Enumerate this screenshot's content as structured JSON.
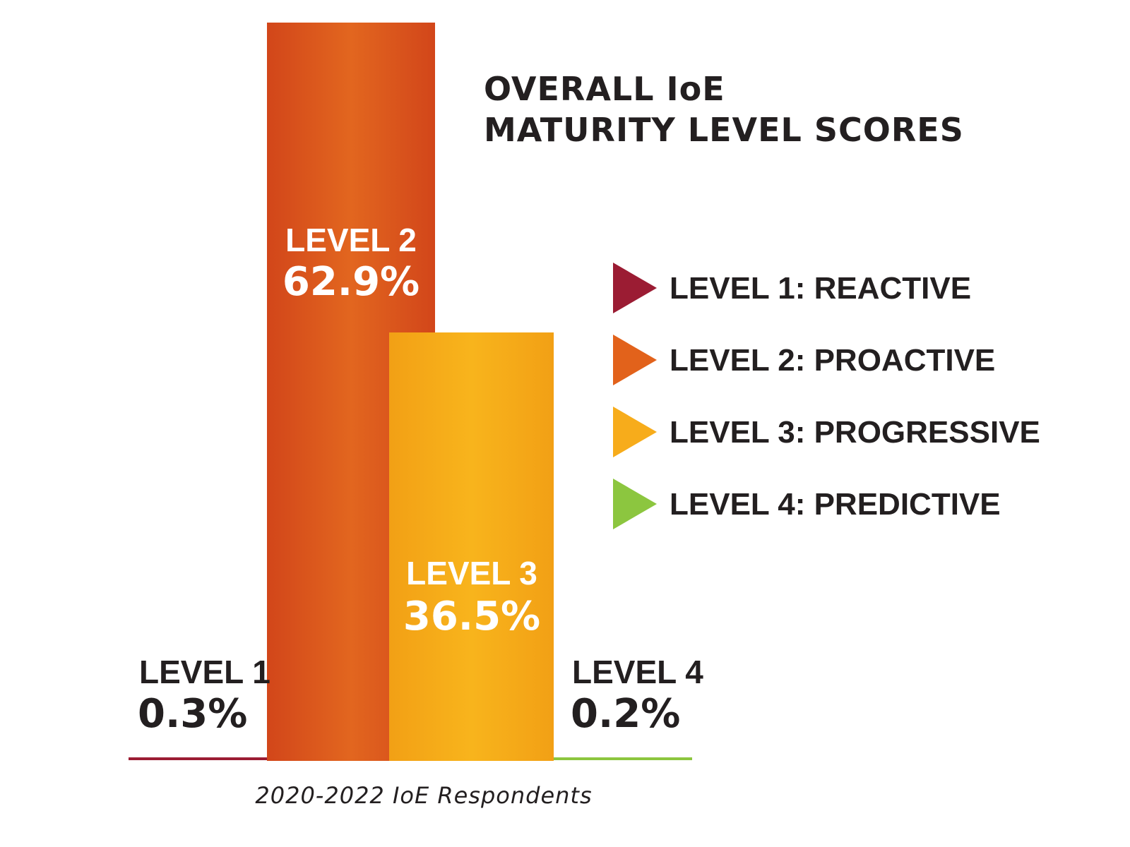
{
  "chart_data": {
    "type": "bar",
    "title_lines": [
      "OVERALL IoE",
      "MATURITY LEVEL SCORES"
    ],
    "caption": "2020-2022 IoE Respondents",
    "unit": "%",
    "ylim": [
      0,
      65
    ],
    "grid": false,
    "legend_position": "right",
    "categories": [
      "LEVEL 1",
      "LEVEL 2",
      "LEVEL 3",
      "LEVEL 4"
    ],
    "values": [
      0.3,
      62.9,
      36.5,
      0.2
    ],
    "value_labels": [
      "0.3%",
      "62.9%",
      "36.5%",
      "0.2%"
    ],
    "colors": [
      "#9b1c33",
      "#e2621b",
      "#f7ac1b",
      "#8cc63f"
    ],
    "legend": [
      "LEVEL 1: REACTIVE",
      "LEVEL 2: PROACTIVE",
      "LEVEL 3: PROGRESSIVE",
      "LEVEL 4: PREDICTIVE"
    ]
  }
}
